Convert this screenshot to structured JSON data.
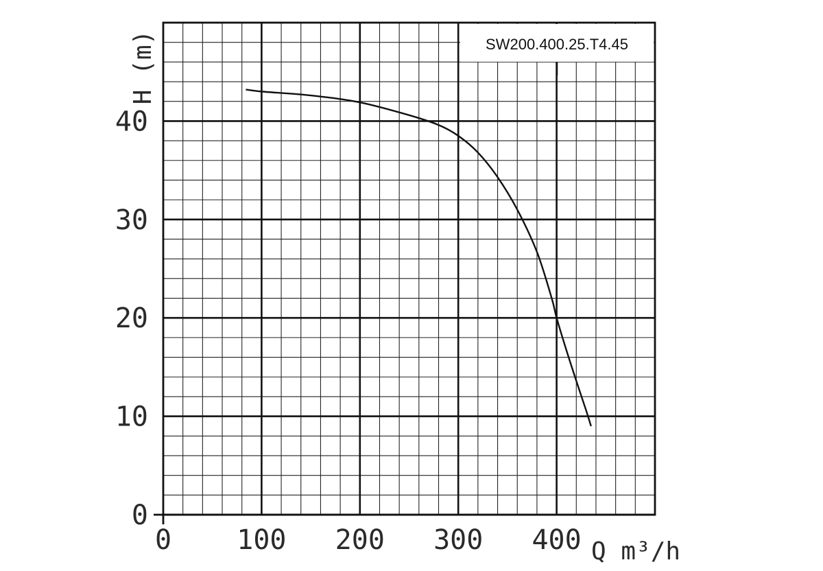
{
  "chart_data": {
    "type": "line",
    "title": "",
    "xlabel": "Q m³/h",
    "ylabel": "H (m)",
    "xlim": [
      0,
      500
    ],
    "ylim": [
      0,
      50
    ],
    "x_ticks": [
      0,
      100,
      200,
      300,
      400
    ],
    "y_ticks": [
      0,
      10,
      20,
      30,
      40
    ],
    "x_minor_step": 20,
    "y_minor_step": 2,
    "grid": true,
    "legend_position": "top-right",
    "series": [
      {
        "name": "SW200.400.25.T4.45",
        "x": [
          84,
          100,
          150,
          200,
          250,
          280,
          300,
          320,
          340,
          360,
          380,
          395,
          400,
          410,
          420,
          430,
          435
        ],
        "y": [
          43.2,
          43.0,
          42.6,
          41.9,
          40.6,
          39.6,
          38.5,
          36.8,
          34.3,
          31.0,
          26.7,
          22.0,
          20.0,
          16.7,
          13.6,
          10.6,
          9.0
        ]
      }
    ],
    "colors": {
      "major_grid": "#111111",
      "minor_grid": "#222222",
      "line": "#111111"
    }
  }
}
